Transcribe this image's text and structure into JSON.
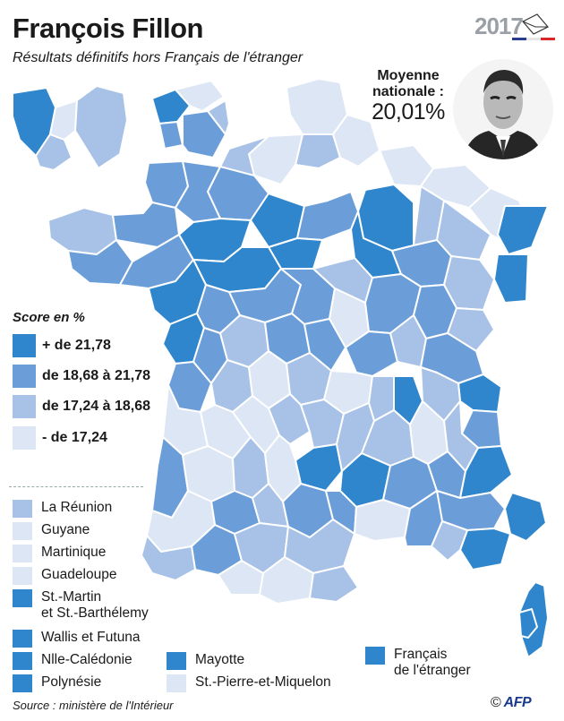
{
  "title": "François Fillon",
  "subtitle": "Résultats définitifs hors Français de l'étranger",
  "logo": {
    "year": "2017"
  },
  "national_average": {
    "label_line1": "Moyenne",
    "label_line2": "nationale :",
    "value": "20,01%"
  },
  "colors": {
    "cat1": "#2f86cc",
    "cat2": "#6b9ed8",
    "cat3": "#a7c1e7",
    "cat4": "#dde6f5",
    "border": "#ffffff",
    "text": "#1a1a1a"
  },
  "legend": {
    "title": "Score en %",
    "items": [
      {
        "label": "+ de 21,78",
        "color": "#2f86cc"
      },
      {
        "label": "de 18,68 à 21,78",
        "color": "#6b9ed8"
      },
      {
        "label": "de 17,24 à 18,68",
        "color": "#a7c1e7"
      },
      {
        "label": "- de 17,24",
        "color": "#dde6f5"
      }
    ]
  },
  "territories": [
    {
      "name": "La Réunion",
      "color": "#a7c1e7"
    },
    {
      "name": "Guyane",
      "color": "#dde6f5"
    },
    {
      "name": "Martinique",
      "color": "#dde6f5"
    },
    {
      "name": "Guadeloupe",
      "color": "#dde6f5"
    },
    {
      "name": "St.-Martin",
      "name2": "et St.-Barthélemy",
      "color": "#2f86cc"
    },
    {
      "name": "Wallis et Futuna",
      "color": "#2f86cc"
    },
    {
      "name": "Nlle-Calédonie",
      "color": "#2f86cc"
    },
    {
      "name": "Polynésie",
      "color": "#2f86cc"
    },
    {
      "name": "Mayotte",
      "color": "#2f86cc"
    },
    {
      "name": "St.-Pierre-et-Miquelon",
      "color": "#dde6f5"
    },
    {
      "name": "Français",
      "name2": "de l'étranger",
      "color": "#2f86cc"
    }
  ],
  "source": "Source : ministère de l'Intérieur",
  "credit": "AFP"
}
